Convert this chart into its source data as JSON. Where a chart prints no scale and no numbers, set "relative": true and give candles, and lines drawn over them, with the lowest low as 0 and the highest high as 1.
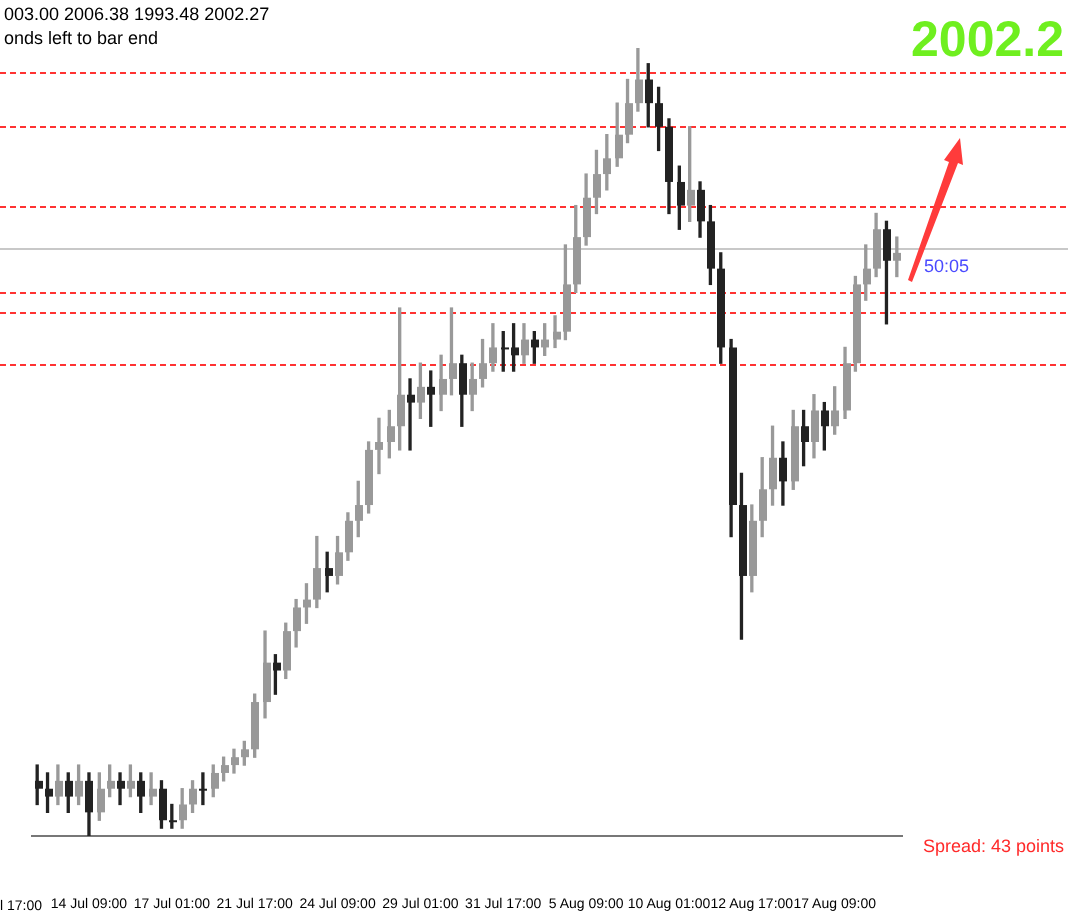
{
  "chart_data": {
    "type": "candlestick",
    "relative": true,
    "colors": [
      "#222222",
      "#222222",
      "#999999",
      "#222222",
      "#999999",
      "#222222",
      "#999999",
      "#999999",
      "#222222",
      "#999999",
      "#222222",
      "#999999",
      "#222222",
      "#222222",
      "#999999",
      "#999999",
      "#222222",
      "#999999",
      "#999999",
      "#999999",
      "#999999",
      "#999999",
      "#999999",
      "#222222",
      "#999999",
      "#999999",
      "#999999",
      "#999999",
      "#222222",
      "#999999",
      "#999999",
      "#999999",
      "#999999",
      "#999999",
      "#999999",
      "#999999",
      "#222222",
      "#999999",
      "#222222",
      "#999999",
      "#999999",
      "#222222",
      "#999999",
      "#999999",
      "#999999",
      "#222222",
      "#222222",
      "#999999",
      "#222222",
      "#999999",
      "#999999",
      "#999999",
      "#999999",
      "#999999",
      "#999999",
      "#999999",
      "#999999",
      "#999999",
      "#999999",
      "#222222",
      "#222222",
      "#222222",
      "#222222",
      "#999999",
      "#222222",
      "#222222",
      "#222222",
      "#222222",
      "#222222",
      "#999999",
      "#999999",
      "#999999",
      "#222222",
      "#999999",
      "#222222",
      "#999999",
      "#222222",
      "#999999",
      "#999999",
      "#999999",
      "#999999",
      "#999999",
      "#222222",
      "#999999"
    ],
    "categories": [
      null,
      null,
      null,
      null,
      null,
      "14 Jul 09:00",
      null,
      null,
      null,
      null,
      null,
      null,
      null,
      "17 Jul 01:00",
      null,
      null,
      null,
      null,
      null,
      null,
      null,
      "21 Jul 17:00",
      null,
      null,
      null,
      null,
      null,
      null,
      null,
      "24 Jul 09:00",
      null,
      null,
      null,
      null,
      null,
      null,
      null,
      "29 Jul 01:00",
      null,
      null,
      null,
      null,
      null,
      null,
      null,
      "31 Jul 17:00",
      null,
      null,
      null,
      null,
      null,
      null,
      null,
      "5 Aug 09:00",
      null,
      null,
      null,
      null,
      null,
      null,
      null,
      "10 Aug 01:00",
      null,
      null,
      null,
      null,
      null,
      null,
      null,
      "12 Aug 17:00",
      null,
      null,
      null,
      null,
      null,
      null,
      null,
      "17 Aug 09:00",
      null,
      null,
      null,
      null,
      null,
      null
    ],
    "ohlc": [
      [
        0.07,
        0.09,
        0.04,
        0.06
      ],
      [
        0.06,
        0.08,
        0.03,
        0.05
      ],
      [
        0.05,
        0.09,
        0.04,
        0.07
      ],
      [
        0.07,
        0.08,
        0.03,
        0.05
      ],
      [
        0.05,
        0.09,
        0.04,
        0.07
      ],
      [
        0.07,
        0.08,
        0,
        0.03
      ],
      [
        0.03,
        0.08,
        0.02,
        0.06
      ],
      [
        0.06,
        0.09,
        0.05,
        0.07
      ],
      [
        0.07,
        0.08,
        0.04,
        0.06
      ],
      [
        0.06,
        0.09,
        0.05,
        0.07
      ],
      [
        0.07,
        0.08,
        0.03,
        0.05
      ],
      [
        0.05,
        0.08,
        0.04,
        0.06
      ],
      [
        0.06,
        0.07,
        0.01,
        0.02
      ],
      [
        0.02,
        0.04,
        0.01,
        0.02
      ],
      [
        0.02,
        0.06,
        0.01,
        0.04
      ],
      [
        0.04,
        0.07,
        0.03,
        0.06
      ],
      [
        0.06,
        0.08,
        0.04,
        0.06
      ],
      [
        0.06,
        0.09,
        0.05,
        0.08
      ],
      [
        0.08,
        0.1,
        0.07,
        0.09
      ],
      [
        0.09,
        0.11,
        0.08,
        0.1
      ],
      [
        0.1,
        0.12,
        0.09,
        0.11
      ],
      [
        0.11,
        0.18,
        0.1,
        0.17
      ],
      [
        0.17,
        0.26,
        0.15,
        0.22
      ],
      [
        0.22,
        0.23,
        0.18,
        0.21
      ],
      [
        0.21,
        0.27,
        0.2,
        0.26
      ],
      [
        0.26,
        0.3,
        0.24,
        0.29
      ],
      [
        0.29,
        0.32,
        0.27,
        0.3
      ],
      [
        0.3,
        0.38,
        0.29,
        0.34
      ],
      [
        0.34,
        0.36,
        0.31,
        0.33
      ],
      [
        0.33,
        0.38,
        0.32,
        0.36
      ],
      [
        0.36,
        0.41,
        0.35,
        0.4
      ],
      [
        0.4,
        0.45,
        0.38,
        0.42
      ],
      [
        0.42,
        0.5,
        0.41,
        0.49
      ],
      [
        0.49,
        0.53,
        0.46,
        0.5
      ],
      [
        0.5,
        0.54,
        0.48,
        0.52
      ],
      [
        0.52,
        0.67,
        0.49,
        0.56
      ],
      [
        0.56,
        0.58,
        0.49,
        0.55
      ],
      [
        0.55,
        0.6,
        0.53,
        0.57
      ],
      [
        0.57,
        0.59,
        0.52,
        0.56
      ],
      [
        0.56,
        0.61,
        0.54,
        0.58
      ],
      [
        0.58,
        0.67,
        0.56,
        0.6
      ],
      [
        0.6,
        0.61,
        0.52,
        0.56
      ],
      [
        0.56,
        0.6,
        0.54,
        0.58
      ],
      [
        0.58,
        0.63,
        0.57,
        0.6
      ],
      [
        0.6,
        0.65,
        0.59,
        0.62
      ],
      [
        0.62,
        0.64,
        0.59,
        0.62
      ],
      [
        0.62,
        0.65,
        0.59,
        0.61
      ],
      [
        0.61,
        0.65,
        0.6,
        0.63
      ],
      [
        0.63,
        0.64,
        0.6,
        0.62
      ],
      [
        0.62,
        0.65,
        0.61,
        0.63
      ],
      [
        0.63,
        0.66,
        0.62,
        0.64
      ],
      [
        0.64,
        0.75,
        0.63,
        0.7
      ],
      [
        0.7,
        0.8,
        0.69,
        0.76
      ],
      [
        0.76,
        0.84,
        0.75,
        0.81
      ],
      [
        0.81,
        0.87,
        0.79,
        0.84
      ],
      [
        0.84,
        0.89,
        0.82,
        0.86
      ],
      [
        0.86,
        0.93,
        0.85,
        0.89
      ],
      [
        0.89,
        0.96,
        0.88,
        0.93
      ],
      [
        0.93,
        1,
        0.92,
        0.96
      ],
      [
        0.96,
        0.98,
        0.9,
        0.93
      ],
      [
        0.93,
        0.95,
        0.87,
        0.9
      ],
      [
        0.9,
        0.91,
        0.79,
        0.83
      ],
      [
        0.83,
        0.85,
        0.77,
        0.8
      ],
      [
        0.8,
        0.9,
        0.78,
        0.82
      ],
      [
        0.82,
        0.83,
        0.76,
        0.78
      ],
      [
        0.78,
        0.8,
        0.7,
        0.72
      ],
      [
        0.72,
        0.74,
        0.6,
        0.62
      ],
      [
        0.62,
        0.63,
        0.38,
        0.42
      ],
      [
        0.42,
        0.46,
        0.25,
        0.33
      ],
      [
        0.33,
        0.42,
        0.31,
        0.4
      ],
      [
        0.4,
        0.48,
        0.38,
        0.44
      ],
      [
        0.44,
        0.52,
        0.42,
        0.48
      ],
      [
        0.48,
        0.5,
        0.42,
        0.45
      ],
      [
        0.45,
        0.54,
        0.44,
        0.52
      ],
      [
        0.52,
        0.54,
        0.47,
        0.5
      ],
      [
        0.5,
        0.56,
        0.48,
        0.54
      ],
      [
        0.54,
        0.55,
        0.49,
        0.52
      ],
      [
        0.52,
        0.57,
        0.51,
        0.54
      ],
      [
        0.54,
        0.62,
        0.53,
        0.6
      ],
      [
        0.6,
        0.71,
        0.59,
        0.7
      ],
      [
        0.7,
        0.75,
        0.68,
        0.72
      ],
      [
        0.72,
        0.79,
        0.71,
        0.77
      ],
      [
        0.77,
        0.78,
        0.65,
        0.73
      ],
      [
        0.73,
        0.76,
        0.71,
        0.74
      ]
    ],
    "ref_lines": [
      {
        "axis": "y",
        "value": 0.97,
        "color": "#ff3333",
        "line_style": "dashed"
      },
      {
        "axis": "y",
        "value": 0.9,
        "color": "#ff3333",
        "line_style": "dashed"
      },
      {
        "axis": "y",
        "value": 0.8,
        "color": "#ff3333",
        "line_style": "dashed"
      },
      {
        "axis": "y",
        "value": 0.745,
        "color": "#c8c8c8",
        "line_style": "solid"
      },
      {
        "axis": "y",
        "value": 0.69,
        "color": "#ff3333",
        "line_style": "dashed"
      },
      {
        "axis": "y",
        "value": 0.665,
        "color": "#ff3333",
        "line_style": "dashed"
      },
      {
        "axis": "y",
        "value": 0.6,
        "color": "#ff3333",
        "line_style": "dashed"
      }
    ],
    "annotations": [
      "003.00 2006.38 1993.48 2002.27",
      "onds left to bar end",
      "2002.2",
      "50:05",
      "Spread: 43 points",
      "l 17:00"
    ]
  }
}
